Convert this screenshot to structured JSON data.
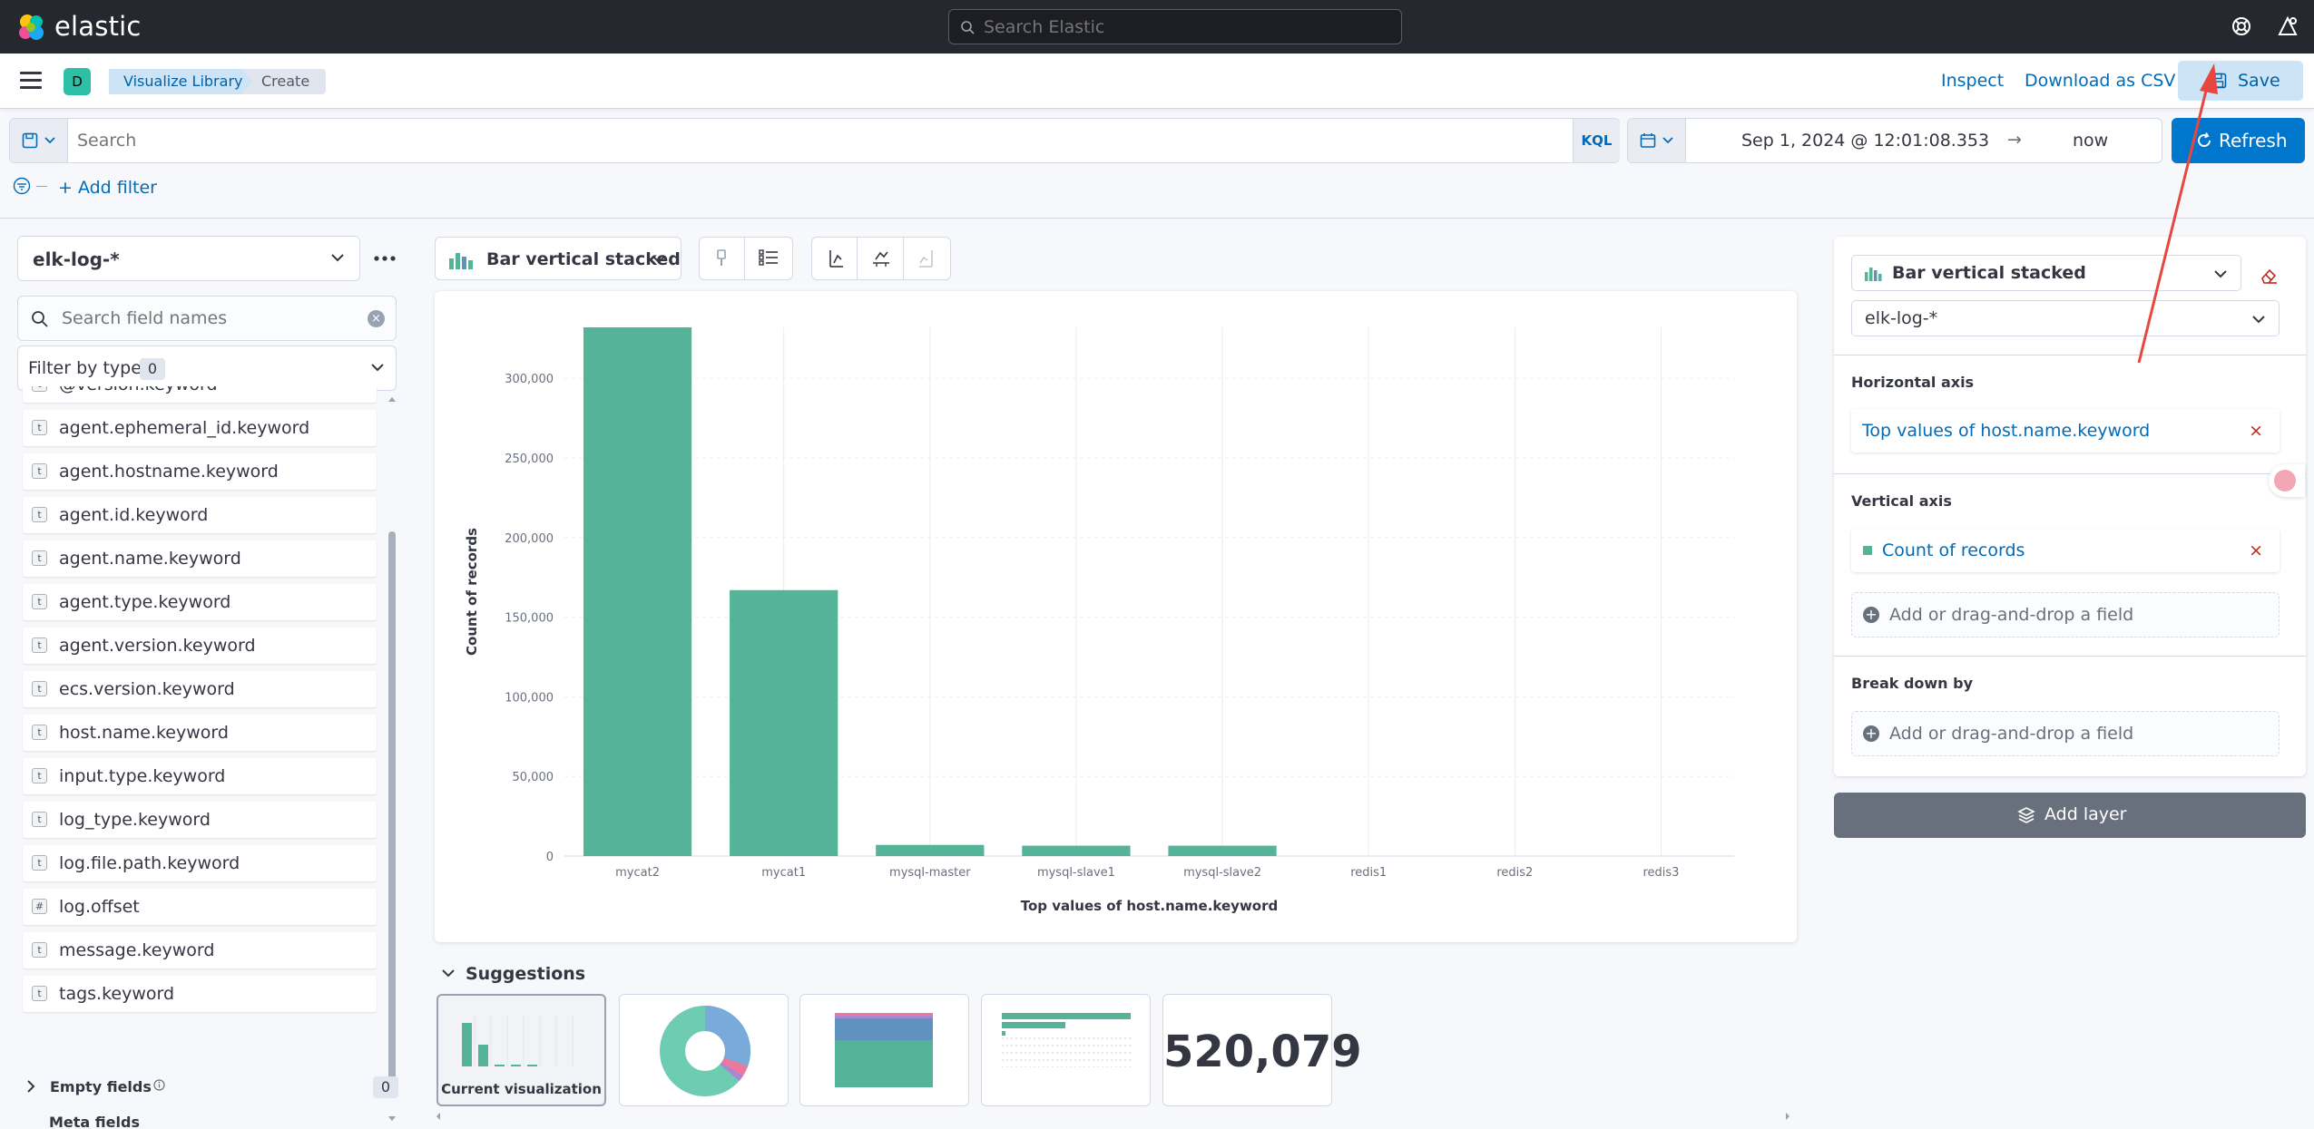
{
  "app": {
    "brand": "elastic",
    "global_search_placeholder": "Search Elastic",
    "space_initial": "D"
  },
  "breadcrumbs": [
    "Visualize Library",
    "Create"
  ],
  "header_actions": {
    "inspect": "Inspect",
    "download_csv": "Download as CSV",
    "save": "Save"
  },
  "query": {
    "placeholder": "Search",
    "language": "KQL",
    "start_date": "Sep 1, 2024 @ 12:01:08.353",
    "end_date": "now",
    "refresh": "Refresh",
    "add_filter": "+ Add filter"
  },
  "left_panel": {
    "data_view": "elk-log-*",
    "field_search_placeholder": "Search field names",
    "filter_by_type": "Filter by type",
    "filter_count": "0",
    "fields": [
      {
        "type": "t",
        "name": "@version.keyword"
      },
      {
        "type": "t",
        "name": "agent.ephemeral_id.keyword"
      },
      {
        "type": "t",
        "name": "agent.hostname.keyword"
      },
      {
        "type": "t",
        "name": "agent.id.keyword"
      },
      {
        "type": "t",
        "name": "agent.name.keyword"
      },
      {
        "type": "t",
        "name": "agent.type.keyword"
      },
      {
        "type": "t",
        "name": "agent.version.keyword"
      },
      {
        "type": "t",
        "name": "ecs.version.keyword"
      },
      {
        "type": "t",
        "name": "host.name.keyword"
      },
      {
        "type": "t",
        "name": "input.type.keyword"
      },
      {
        "type": "t",
        "name": "log_type.keyword"
      },
      {
        "type": "t",
        "name": "log.file.path.keyword"
      },
      {
        "type": "#",
        "name": "log.offset"
      },
      {
        "type": "t",
        "name": "message.keyword"
      },
      {
        "type": "t",
        "name": "tags.keyword"
      }
    ],
    "empty_fields": "Empty fields",
    "empty_count": "0",
    "meta_fields": "Meta fields"
  },
  "toolbar": {
    "chart_type": "Bar vertical stacked"
  },
  "chart_data": {
    "type": "bar",
    "categories": [
      "mycat2",
      "mycat1",
      "mysql-master",
      "mysql-slave1",
      "mysql-slave2",
      "redis1",
      "redis2",
      "redis3"
    ],
    "series": [
      {
        "name": "Count of records",
        "values": [
          332000,
          167000,
          7000,
          6500,
          6500,
          0,
          0,
          0
        ]
      }
    ],
    "xlabel": "Top values of host.name.keyword",
    "ylabel": "Count of records",
    "ylim": [
      0,
      332000
    ],
    "yticks": [
      0,
      50000,
      100000,
      150000,
      200000,
      250000,
      300000
    ],
    "ytick_labels": [
      "0",
      "50,000",
      "100,000",
      "150,000",
      "200,000",
      "250,000",
      "300,000"
    ],
    "grid": true,
    "color": "#54b399"
  },
  "suggestions": {
    "title": "Suggestions",
    "current": "Current visualization",
    "metric_value": "520,079"
  },
  "config": {
    "chart_type": "Bar vertical stacked",
    "data_view": "elk-log-*",
    "horizontal_axis_title": "Horizontal axis",
    "horizontal_axis_value": "Top values of host.name.keyword",
    "vertical_axis_title": "Vertical axis",
    "vertical_axis_value": "Count of records",
    "add_field": "Add or drag-and-drop a field",
    "breakdown_title": "Break down by",
    "add_layer": "Add layer"
  }
}
